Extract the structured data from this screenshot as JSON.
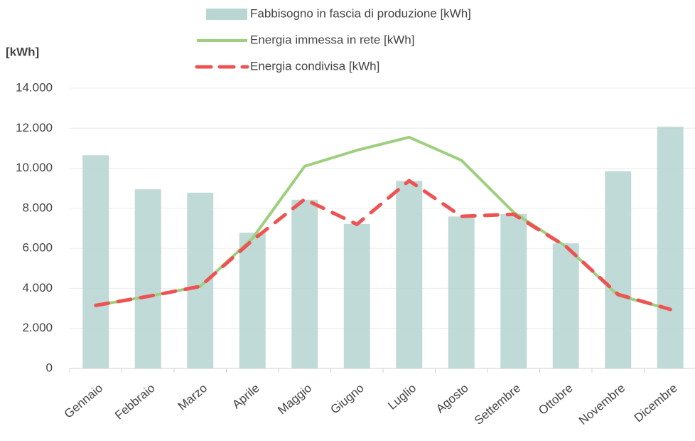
{
  "chart_data": {
    "type": "bar-line",
    "y_label": "[kWh]",
    "categories": [
      "Gennaio",
      "Febbraio",
      "Marzo",
      "Aprile",
      "Maggio",
      "Giugno",
      "Luglio",
      "Agosto",
      "Settembre",
      "Ottobre",
      "Novembre",
      "Dicembre"
    ],
    "series": [
      {
        "name": "Fabbisogno in fascia di produzione [kWh]",
        "kind": "bar",
        "color": "#b9d6d3",
        "values": [
          10650,
          8950,
          8780,
          6780,
          8430,
          7220,
          9370,
          7590,
          7720,
          6250,
          9850,
          12070
        ]
      },
      {
        "name": "Energia immessa in rete [kWh]",
        "kind": "line",
        "color": "#9dcf7e",
        "values": [
          3150,
          3600,
          4100,
          6500,
          10100,
          10900,
          11550,
          10400,
          7800,
          6100,
          3650,
          2950
        ]
      },
      {
        "name": "Energia condivisa [kWh]",
        "kind": "dashed",
        "color": "#ee5253",
        "values": [
          3150,
          3600,
          4100,
          6400,
          8450,
          7200,
          9380,
          7600,
          7700,
          6100,
          3700,
          2950
        ]
      }
    ],
    "ylim": [
      0,
      14000
    ],
    "yticks": [
      0,
      {
        "value": 2000,
        "label": "2.000"
      },
      {
        "value": 4000,
        "label": "4.000"
      },
      {
        "value": 6000,
        "label": "6.000"
      },
      {
        "value": 8000,
        "label": "8.000"
      },
      {
        "value": 10000,
        "label": "10.000"
      },
      {
        "value": 12000,
        "label": "12.000"
      },
      {
        "value": 14000,
        "label": "14.000"
      }
    ],
    "grid": true
  }
}
